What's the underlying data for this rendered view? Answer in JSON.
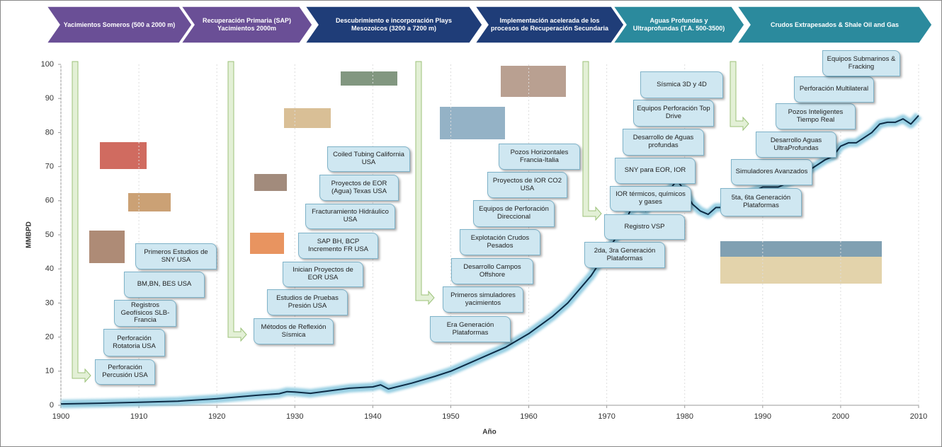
{
  "chart_data": {
    "type": "line",
    "xlabel": "Año",
    "ylabel": "MMBPD",
    "x": [
      1900,
      1905,
      1910,
      1915,
      1920,
      1925,
      1928,
      1929,
      1930,
      1932,
      1935,
      1937,
      1940,
      1941,
      1942,
      1945,
      1948,
      1950,
      1952,
      1955,
      1957,
      1960,
      1963,
      1965,
      1968,
      1970,
      1972,
      1973,
      1974,
      1975,
      1976,
      1977,
      1978,
      1979,
      1980,
      1981,
      1982,
      1983,
      1984,
      1985,
      1986,
      1988,
      1990,
      1992,
      1994,
      1996,
      1998,
      1999,
      2000,
      2001,
      2002,
      2004,
      2005,
      2006,
      2007,
      2008,
      2009,
      2010
    ],
    "values": [
      0.4,
      0.6,
      0.9,
      1.2,
      1.9,
      2.9,
      3.4,
      4.0,
      3.9,
      3.5,
      4.4,
      5.0,
      5.4,
      6.0,
      4.8,
      6.5,
      8.5,
      10,
      12,
      15,
      17,
      21,
      26,
      30,
      38,
      45,
      52,
      57,
      58,
      57,
      61,
      62.5,
      63,
      66,
      63,
      59,
      57,
      56,
      58,
      58,
      60,
      62,
      64,
      64,
      66,
      69,
      72,
      73,
      76,
      77,
      77,
      80,
      82.5,
      83,
      83,
      84,
      82.5,
      85
    ],
    "color": "#0d2b45",
    "glow_color": "#7ec3dc",
    "xlim": [
      1900,
      2010
    ],
    "ylim": [
      0,
      100
    ],
    "xticks": [
      1900,
      1910,
      1920,
      1930,
      1940,
      1950,
      1960,
      1970,
      1980,
      1990,
      2000,
      2010
    ],
    "yticks": [
      0,
      10,
      20,
      30,
      40,
      50,
      60,
      70,
      80,
      90,
      100
    ],
    "grid": "x",
    "phases": [
      {
        "label": "Yacimientos Someros (500 a 2000 m)",
        "color": "#6a4f96"
      },
      {
        "label": "Recuperación Primaria (SAP) Yacimientos 2000m",
        "color": "#6a4f96"
      },
      {
        "label": "Descubrimiento e incorporación Plays Mesozoicos (3200 a 7200 m)",
        "color": "#1f3d78"
      },
      {
        "label": "Implementación acelerada de los procesos de Recuperación Secundaria",
        "color": "#1f3d78"
      },
      {
        "label": "Aguas Profundas y Ultraprofundas (T.A. 500-3500)",
        "color": "#2b8a9d"
      },
      {
        "label": "Crudos Extrapesados & Shale Oil and Gas",
        "color": "#2b8a9d"
      }
    ],
    "annotations": [
      "Perforación Percusión USA",
      "Perforación Rotatoria USA",
      "Registros Geofísicos SLB-Francia",
      "BM,BN, BES USA",
      "Primeros Estudios de SNY USA",
      "Métodos de Reflexión Sísmica",
      "Estudios de Pruebas Presión USA",
      "Inician Proyectos de EOR USA",
      "SAP BH, BCP Incremento FR USA",
      "Fracturamiento Hidráulico USA",
      "Proyectos de EOR (Agua) Texas USA",
      "Coiled Tubing California USA",
      "Era Generación Plataformas",
      "Primeros simuladores yacimientos",
      "Desarrollo Campos Offshore",
      "Explotación Crudos Pesados",
      "Equipos de Perforación Direccional",
      "Proyectos de IOR CO2 USA",
      "Pozos Horizontales Francia-Italia",
      "2da, 3ra Generación Plataformas",
      "Registro VSP",
      "IOR térmicos, químicos y gases",
      "SNY para EOR, IOR",
      "Desarrollo de Aguas profundas",
      "Equipos Perforación Top Drive",
      "Sísmica 3D y 4D",
      "5ta, 6ta Generación Plataformas",
      "Simuladores Avanzados",
      "Desarrollo Aguas UltraProfundas",
      "Pozos Inteligentes Tiempo Real",
      "Perforación Multilateral",
      "Equipos Submarinos & Fracking"
    ]
  }
}
